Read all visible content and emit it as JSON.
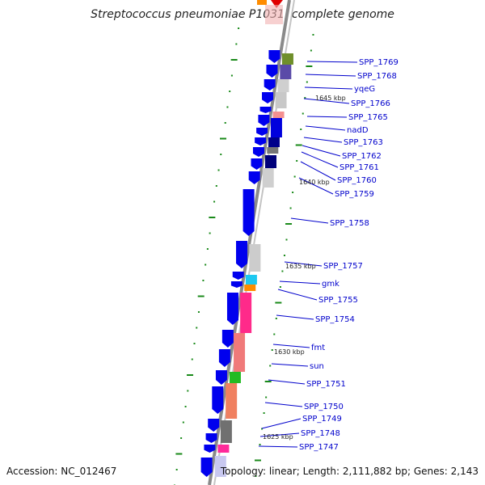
{
  "title": "Streptococcus pneumoniae P1031, complete genome",
  "accession": "Accession: NC_012467",
  "summary": "Topology: linear; Length: 2,111,882 bp; Genes: 2,143",
  "scale_labels": [
    "1645 kbp",
    "1640 kbp",
    "1635 kbp",
    "1630 kbp",
    "1625 kbp"
  ],
  "genes": [
    "SPP_1769",
    "SPP_1768",
    "yqeG",
    "SPP_1766",
    "SPP_1765",
    "nadD",
    "SPP_1763",
    "SPP_1762",
    "SPP_1761",
    "SPP_1760",
    "SPP_1759",
    "SPP_1758",
    "SPP_1757",
    "gmk",
    "SPP_1755",
    "SPP_1754",
    "fmt",
    "sun",
    "SPP_1751",
    "SPP_1750",
    "SPP_1749",
    "SPP_1748",
    "SPP_1747"
  ],
  "colors": {
    "gene_arrow": "#0000ee",
    "label": "#0000cc",
    "tick": "#1a8a1a",
    "backbone": "#8a8a8a"
  }
}
